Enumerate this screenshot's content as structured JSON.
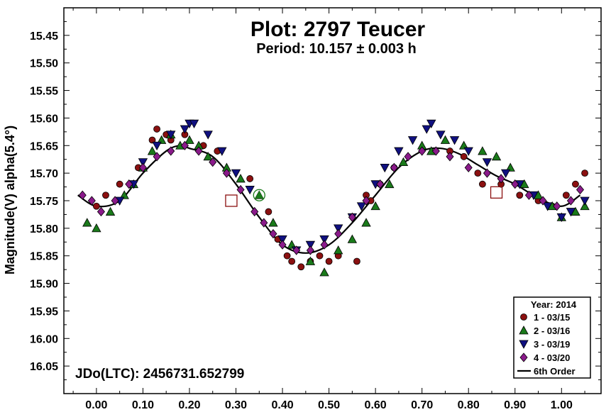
{
  "chart_data": {
    "type": "scatter",
    "title": "Plot: 2797 Teucer",
    "subtitle": "Period: 10.157 ± 0.003 h",
    "xlabel": "",
    "ylabel": "Magnitude(V) alpha(5.4°)",
    "annotation": "JDo(LTC): 2456731.652799",
    "xlim": [
      -0.07,
      1.085
    ],
    "ylim": [
      15.4,
      16.1
    ],
    "y_inverted": true,
    "x_ticks": [
      "0.00",
      "0.10",
      "0.20",
      "0.30",
      "0.40",
      "0.50",
      "0.60",
      "0.70",
      "0.80",
      "0.90",
      "1.00"
    ],
    "y_ticks": [
      "15.45",
      "15.50",
      "15.55",
      "15.60",
      "15.65",
      "15.70",
      "15.75",
      "15.80",
      "15.85",
      "15.90",
      "15.95",
      "16.00",
      "16.05"
    ],
    "legend": {
      "title": "Year: 2014",
      "placement": "bottom-right",
      "entries": [
        "1 - 03/15",
        "2 - 03/16",
        "3 - 03/19",
        "4 - 03/20",
        "6th Order"
      ]
    },
    "grid": false,
    "fit": {
      "name": "6th Order",
      "x": [
        -0.04,
        0.0,
        0.05,
        0.1,
        0.15,
        0.18,
        0.2,
        0.25,
        0.3,
        0.35,
        0.4,
        0.45,
        0.5,
        0.55,
        0.6,
        0.65,
        0.7,
        0.74,
        0.78,
        0.82,
        0.86,
        0.9,
        0.95,
        1.0,
        1.04
      ],
      "y": [
        15.74,
        15.76,
        15.75,
        15.7,
        15.66,
        15.65,
        15.655,
        15.67,
        15.72,
        15.78,
        15.83,
        15.845,
        15.83,
        15.79,
        15.74,
        15.69,
        15.66,
        15.655,
        15.665,
        15.685,
        15.705,
        15.72,
        15.745,
        15.76,
        15.74
      ]
    },
    "series": [
      {
        "name": "1 - 03/15",
        "color": "#8b1010",
        "marker": "circle",
        "x": [
          0.0,
          0.02,
          0.05,
          0.09,
          0.12,
          0.13,
          0.15,
          0.16,
          0.19,
          0.23,
          0.26,
          0.33,
          0.37,
          0.39,
          0.41,
          0.42,
          0.44,
          0.46,
          0.48,
          0.5,
          0.52,
          0.56,
          0.58,
          0.59,
          0.61,
          0.64,
          0.76,
          0.79,
          0.82,
          0.83,
          0.87,
          0.91,
          0.95,
          0.98,
          1.01,
          1.03,
          1.05
        ],
        "y": [
          15.76,
          15.74,
          15.72,
          15.69,
          15.64,
          15.62,
          15.63,
          15.64,
          15.63,
          15.65,
          15.66,
          15.71,
          15.77,
          15.82,
          15.85,
          15.86,
          15.87,
          15.86,
          15.85,
          15.86,
          15.85,
          15.86,
          15.74,
          15.75,
          15.72,
          15.69,
          15.66,
          15.67,
          15.7,
          15.72,
          15.72,
          15.74,
          15.75,
          15.76,
          15.74,
          15.72,
          15.7
        ]
      },
      {
        "name": "2 - 03/16",
        "color": "#1a7a1a",
        "marker": "triangle-up",
        "x": [
          -0.02,
          0.0,
          0.03,
          0.06,
          0.08,
          0.1,
          0.12,
          0.14,
          0.16,
          0.18,
          0.2,
          0.22,
          0.24,
          0.28,
          0.31,
          0.35,
          0.38,
          0.42,
          0.46,
          0.49,
          0.52,
          0.55,
          0.58,
          0.6,
          0.63,
          0.66,
          0.7,
          0.72,
          0.75,
          0.79,
          0.83,
          0.86,
          0.89,
          0.92,
          0.95,
          0.98,
          1.0,
          1.03,
          1.05
        ],
        "y": [
          15.79,
          15.8,
          15.77,
          15.74,
          15.72,
          15.69,
          15.66,
          15.64,
          15.63,
          15.65,
          15.64,
          15.65,
          15.67,
          15.69,
          15.71,
          15.74,
          15.79,
          15.83,
          15.86,
          15.88,
          15.84,
          15.82,
          15.79,
          15.76,
          15.72,
          15.68,
          15.65,
          15.66,
          15.64,
          15.65,
          15.66,
          15.67,
          15.69,
          15.72,
          15.74,
          15.76,
          15.78,
          15.77,
          15.76
        ]
      },
      {
        "name": "3 - 03/19",
        "color": "#101080",
        "marker": "triangle-down",
        "x": [
          0.05,
          0.08,
          0.1,
          0.13,
          0.16,
          0.19,
          0.2,
          0.21,
          0.24,
          0.27,
          0.3,
          0.33,
          0.4,
          0.43,
          0.46,
          0.49,
          0.52,
          0.55,
          0.57,
          0.6,
          0.62,
          0.65,
          0.68,
          0.71,
          0.72,
          0.74,
          0.77,
          0.8,
          0.84,
          0.88,
          0.91,
          0.94,
          0.97,
          1.0,
          1.02,
          1.05
        ],
        "y": [
          15.75,
          15.72,
          15.68,
          15.65,
          15.63,
          15.62,
          15.61,
          15.61,
          15.63,
          15.66,
          15.7,
          15.73,
          15.82,
          15.84,
          15.83,
          15.82,
          15.8,
          15.78,
          15.76,
          15.72,
          15.69,
          15.66,
          15.64,
          15.62,
          15.61,
          15.63,
          15.64,
          15.66,
          15.68,
          15.7,
          15.72,
          15.74,
          15.76,
          15.78,
          15.77,
          15.75
        ]
      },
      {
        "name": "4 - 03/20",
        "color": "#8a1a8a",
        "marker": "diamond",
        "x": [
          -0.03,
          -0.01,
          0.01,
          0.04,
          0.07,
          0.1,
          0.13,
          0.16,
          0.19,
          0.22,
          0.25,
          0.28,
          0.31,
          0.34,
          0.36,
          0.38,
          0.4,
          0.43,
          0.46,
          0.49,
          0.52,
          0.55,
          0.58,
          0.61,
          0.64,
          0.67,
          0.7,
          0.73,
          0.76,
          0.8,
          0.84,
          0.87,
          0.9,
          0.93,
          0.96,
          0.99,
          1.02,
          1.04
        ],
        "y": [
          15.74,
          15.75,
          15.77,
          15.75,
          15.72,
          15.69,
          15.67,
          15.66,
          15.65,
          15.66,
          15.68,
          15.7,
          15.73,
          15.77,
          15.79,
          15.81,
          15.83,
          15.84,
          15.84,
          15.83,
          15.81,
          15.78,
          15.75,
          15.72,
          15.69,
          15.67,
          15.66,
          15.66,
          15.67,
          15.69,
          15.7,
          15.71,
          15.72,
          15.74,
          15.75,
          15.76,
          15.75,
          15.73
        ]
      }
    ],
    "open_markers": [
      {
        "marker": "square",
        "color": "#8b1010",
        "x": 0.29,
        "y": 15.75
      },
      {
        "marker": "circle-triangle",
        "color": "#1a7a1a",
        "x": 0.35,
        "y": 15.74
      },
      {
        "marker": "square",
        "color": "#8b1010",
        "x": 0.86,
        "y": 15.735
      }
    ]
  }
}
